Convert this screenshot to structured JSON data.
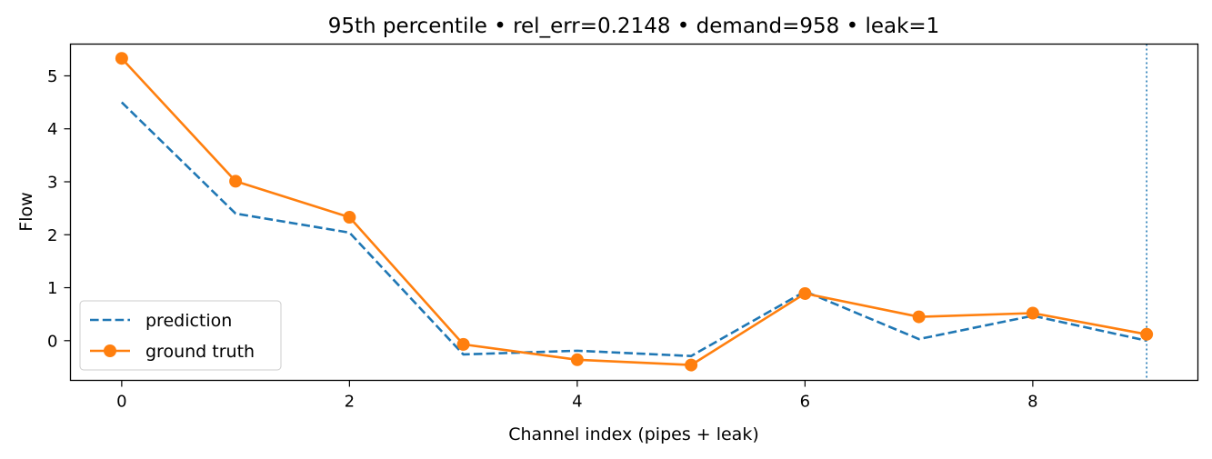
{
  "chart_data": {
    "type": "line",
    "title": "95th percentile • rel_err=0.2148 • demand=958 • leak=1",
    "xlabel": "Channel index (pipes + leak)",
    "ylabel": "Flow",
    "x": [
      0,
      1,
      2,
      3,
      4,
      5,
      6,
      7,
      8,
      9
    ],
    "xlim": [
      -0.45,
      9.45
    ],
    "ylim": [
      -0.75,
      5.6
    ],
    "xticks": [
      0,
      2,
      4,
      6,
      8
    ],
    "xtick_labels": [
      "0",
      "2",
      "4",
      "6",
      "8"
    ],
    "yticks": [
      0,
      1,
      2,
      3,
      4,
      5
    ],
    "ytick_labels": [
      "0",
      "1",
      "2",
      "3",
      "4",
      "5"
    ],
    "grid": false,
    "legend_position": "lower-left",
    "series": [
      {
        "name": "prediction",
        "style": "dashed",
        "color": "#1f77b4",
        "values": [
          4.5,
          2.4,
          2.04,
          -0.26,
          -0.19,
          -0.29,
          0.93,
          0.03,
          0.47,
          0.0
        ]
      },
      {
        "name": "ground truth",
        "style": "solid-markers",
        "color": "#ff7f0e",
        "values": [
          5.33,
          3.01,
          2.33,
          -0.07,
          -0.36,
          -0.46,
          0.89,
          0.45,
          0.52,
          0.12
        ]
      }
    ],
    "vline": {
      "x": 9,
      "style": "dotted",
      "color": "#1f77b4"
    }
  }
}
